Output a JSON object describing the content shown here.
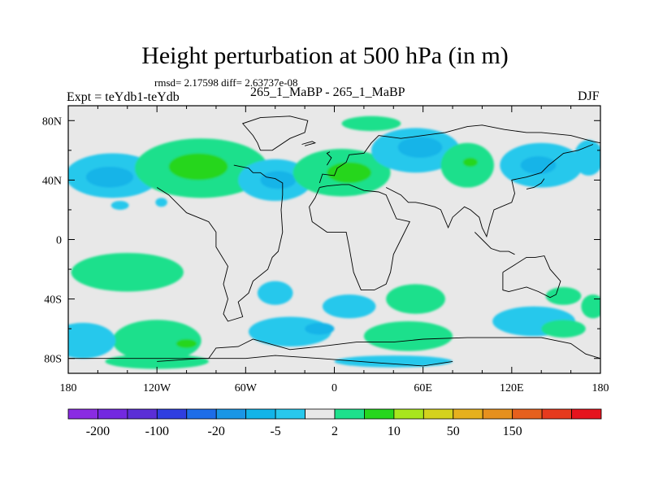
{
  "chart_data": {
    "type": "heatmap",
    "subtype": "filled-contour map",
    "title": "Height perturbation at 500 hPa (in m)",
    "stats_line": "rmsd= 2.17598 diff= 2.63737e-08",
    "left_label": "Expt = teYdb1-teYdb",
    "center_label": "265_1_MaBP - 265_1_MaBP",
    "right_label": "DJF",
    "xlim": [
      -180,
      180
    ],
    "ylim": [
      -90,
      90
    ],
    "x_ticks": [
      {
        "value": -180,
        "label": "180"
      },
      {
        "value": -120,
        "label": "120W"
      },
      {
        "value": -60,
        "label": "60W"
      },
      {
        "value": 0,
        "label": "0"
      },
      {
        "value": 60,
        "label": "60E"
      },
      {
        "value": 120,
        "label": "120E"
      },
      {
        "value": 180,
        "label": "180"
      }
    ],
    "y_ticks": [
      {
        "value": 80,
        "label": "80N"
      },
      {
        "value": 40,
        "label": "40N"
      },
      {
        "value": 0,
        "label": "0"
      },
      {
        "value": -40,
        "label": "40S"
      },
      {
        "value": -80,
        "label": "80S"
      }
    ],
    "colorbar": {
      "colors": [
        "#8a2be2",
        "#7328e0",
        "#5b2ed6",
        "#2f3ee0",
        "#1e6de8",
        "#1a96e6",
        "#12b4e8",
        "#28c8ec",
        "#e8e8e8",
        "#1ee08c",
        "#26d61e",
        "#a8e61e",
        "#d4d21e",
        "#e6b01e",
        "#e6901e",
        "#e6601e",
        "#e63a1e",
        "#e6141e"
      ],
      "labels": [
        {
          "after_box": 1,
          "label": "-200"
        },
        {
          "after_box": 3,
          "label": "-100"
        },
        {
          "after_box": 5,
          "label": "-20"
        },
        {
          "after_box": 7,
          "label": "-5"
        },
        {
          "after_box": 9,
          "label": "2"
        },
        {
          "after_box": 11,
          "label": "10"
        },
        {
          "after_box": 13,
          "label": "50"
        },
        {
          "after_box": 15,
          "label": "150"
        }
      ]
    },
    "background_color": "#e8e8e8",
    "blobs": [
      {
        "name": "n-pacific-blue",
        "color": "#28c8ec",
        "lon": -150,
        "lat": 43,
        "rx": 32,
        "ry": 15
      },
      {
        "name": "n-pacific-core",
        "color": "#12b4e8",
        "lon": -152,
        "lat": 42,
        "rx": 16,
        "ry": 7
      },
      {
        "name": "n-america-green",
        "color": "#1ee08c",
        "lon": -90,
        "lat": 48,
        "rx": 45,
        "ry": 20
      },
      {
        "name": "n-america-core",
        "color": "#26d61e",
        "lon": -92,
        "lat": 49,
        "rx": 20,
        "ry": 9
      },
      {
        "name": "atlantic-blue",
        "color": "#28c8ec",
        "lon": -40,
        "lat": 40,
        "rx": 25,
        "ry": 14
      },
      {
        "name": "atlantic-core",
        "color": "#12b4e8",
        "lon": -38,
        "lat": 40,
        "rx": 12,
        "ry": 6
      },
      {
        "name": "europe-green",
        "color": "#1ee08c",
        "lon": 5,
        "lat": 45,
        "rx": 33,
        "ry": 16
      },
      {
        "name": "europe-core",
        "color": "#26d61e",
        "lon": 10,
        "lat": 45,
        "rx": 15,
        "ry": 7
      },
      {
        "name": "arctic-green",
        "color": "#1ee08c",
        "lon": 25,
        "lat": 78,
        "rx": 20,
        "ry": 5
      },
      {
        "name": "siberia-blue",
        "color": "#28c8ec",
        "lon": 55,
        "lat": 60,
        "rx": 30,
        "ry": 15
      },
      {
        "name": "siberia-core",
        "color": "#12b4e8",
        "lon": 58,
        "lat": 62,
        "rx": 15,
        "ry": 7
      },
      {
        "name": "asia-green",
        "color": "#1ee08c",
        "lon": 90,
        "lat": 50,
        "rx": 18,
        "ry": 15
      },
      {
        "name": "asia-core",
        "color": "#26d61e",
        "lon": 92,
        "lat": 52,
        "rx": 5,
        "ry": 3
      },
      {
        "name": "n-pacific-e-blue",
        "color": "#28c8ec",
        "lon": 140,
        "lat": 50,
        "rx": 28,
        "ry": 15
      },
      {
        "name": "n-pacific-e-core",
        "color": "#12b4e8",
        "lon": 138,
        "lat": 50,
        "rx": 12,
        "ry": 6
      },
      {
        "name": "dateline-blue",
        "color": "#28c8ec",
        "lon": 172,
        "lat": 55,
        "rx": 10,
        "ry": 12
      },
      {
        "name": "small-blue-w",
        "color": "#28c8ec",
        "lon": -145,
        "lat": 23,
        "rx": 6,
        "ry": 3
      },
      {
        "name": "small-blue-c",
        "color": "#28c8ec",
        "lon": -117,
        "lat": 25,
        "rx": 4,
        "ry": 3
      },
      {
        "name": "s-pacific-green",
        "color": "#1ee08c",
        "lon": -140,
        "lat": -22,
        "rx": 38,
        "ry": 13
      },
      {
        "name": "s-atlantic-blue",
        "color": "#28c8ec",
        "lon": -40,
        "lat": -36,
        "rx": 12,
        "ry": 8
      },
      {
        "name": "s-africa-blue",
        "color": "#28c8ec",
        "lon": 10,
        "lat": -45,
        "rx": 18,
        "ry": 8
      },
      {
        "name": "indian-green",
        "color": "#1ee08c",
        "lon": 55,
        "lat": -40,
        "rx": 20,
        "ry": 10
      },
      {
        "name": "se-indian-green",
        "color": "#1ee08c",
        "lon": 155,
        "lat": -38,
        "rx": 12,
        "ry": 6
      },
      {
        "name": "far-e-green",
        "color": "#1ee08c",
        "lon": 175,
        "lat": -45,
        "rx": 8,
        "ry": 8
      },
      {
        "name": "southern-green-w",
        "color": "#1ee08c",
        "lon": -120,
        "lat": -68,
        "rx": 30,
        "ry": 14
      },
      {
        "name": "southern-green-wcore",
        "color": "#26d61e",
        "lon": -100,
        "lat": -70,
        "rx": 7,
        "ry": 3
      },
      {
        "name": "southern-blue-w",
        "color": "#28c8ec",
        "lon": -170,
        "lat": -68,
        "rx": 22,
        "ry": 12
      },
      {
        "name": "southern-blue-c",
        "color": "#28c8ec",
        "lon": -30,
        "lat": -62,
        "rx": 28,
        "ry": 10
      },
      {
        "name": "southern-blue-ccore",
        "color": "#12b4e8",
        "lon": -10,
        "lat": -60,
        "rx": 10,
        "ry": 4
      },
      {
        "name": "southern-green-e",
        "color": "#1ee08c",
        "lon": 50,
        "lat": -65,
        "rx": 30,
        "ry": 10
      },
      {
        "name": "southern-blue-e",
        "color": "#28c8ec",
        "lon": 135,
        "lat": -55,
        "rx": 28,
        "ry": 10
      },
      {
        "name": "southern-green-ee",
        "color": "#1ee08c",
        "lon": 155,
        "lat": -60,
        "rx": 15,
        "ry": 6
      },
      {
        "name": "south-pole-green",
        "color": "#1ee08c",
        "lon": -120,
        "lat": -82,
        "rx": 35,
        "ry": 5
      },
      {
        "name": "south-pole-blue",
        "color": "#28c8ec",
        "lon": 40,
        "lat": -82,
        "rx": 40,
        "ry": 4
      }
    ],
    "coastlines": [
      [
        [
          -180,
          -80
        ],
        [
          -85,
          -80
        ],
        [
          -80,
          -73
        ],
        [
          -65,
          -72
        ],
        [
          -55,
          -67
        ],
        [
          -30,
          -74
        ],
        [
          -10,
          -72
        ],
        [
          15,
          -69
        ],
        [
          40,
          -69
        ],
        [
          60,
          -67
        ],
        [
          90,
          -66
        ],
        [
          110,
          -66
        ],
        [
          140,
          -66
        ],
        [
          160,
          -70
        ],
        [
          170,
          -77
        ],
        [
          180,
          -80
        ]
      ],
      [
        [
          -120,
          -82
        ],
        [
          -90,
          -80
        ],
        [
          -60,
          -80
        ],
        [
          -40,
          -78
        ],
        [
          -10,
          -80
        ],
        [
          30,
          -83
        ],
        [
          60,
          -85
        ],
        [
          80,
          -82
        ]
      ],
      [
        [
          -68,
          50
        ],
        [
          -58,
          48
        ],
        [
          -55,
          45
        ],
        [
          -50,
          45
        ],
        [
          -46,
          42
        ],
        [
          -40,
          41
        ],
        [
          -35,
          38
        ],
        [
          -35,
          30
        ],
        [
          -36,
          20
        ],
        [
          -35,
          5
        ],
        [
          -38,
          -8
        ],
        [
          -42,
          -12
        ],
        [
          -45,
          -20
        ],
        [
          -55,
          -28
        ],
        [
          -58,
          -36
        ],
        [
          -65,
          -42
        ],
        [
          -62,
          -52
        ],
        [
          -72,
          -55
        ],
        [
          -75,
          -50
        ],
        [
          -72,
          -40
        ],
        [
          -75,
          -30
        ],
        [
          -72,
          -18
        ],
        [
          -80,
          -5
        ],
        [
          -80,
          5
        ],
        [
          -85,
          12
        ],
        [
          -100,
          18
        ],
        [
          -112,
          30
        ],
        [
          -120,
          35
        ]
      ],
      [
        [
          -10,
          35
        ],
        [
          -5,
          36
        ],
        [
          5,
          37
        ],
        [
          10,
          37
        ],
        [
          20,
          33
        ],
        [
          30,
          32
        ],
        [
          35,
          30
        ],
        [
          42,
          14
        ],
        [
          51,
          12
        ],
        [
          45,
          0
        ],
        [
          40,
          -10
        ],
        [
          38,
          -22
        ],
        [
          35,
          -30
        ],
        [
          27,
          -34
        ],
        [
          18,
          -34
        ],
        [
          13,
          -22
        ],
        [
          10,
          -5
        ],
        [
          8,
          5
        ],
        [
          -5,
          5
        ],
        [
          -15,
          12
        ],
        [
          -17,
          22
        ],
        [
          -13,
          28
        ],
        [
          -10,
          35
        ]
      ],
      [
        [
          -10,
          38
        ],
        [
          -8,
          44
        ],
        [
          0,
          43
        ],
        [
          2,
          48
        ],
        [
          8,
          52
        ],
        [
          10,
          57
        ],
        [
          20,
          58
        ],
        [
          25,
          65
        ],
        [
          30,
          70
        ],
        [
          45,
          68
        ],
        [
          60,
          70
        ],
        [
          75,
          72
        ],
        [
          90,
          76
        ],
        [
          100,
          77
        ],
        [
          115,
          74
        ],
        [
          130,
          72
        ],
        [
          140,
          72
        ],
        [
          160,
          70
        ],
        [
          175,
          66
        ],
        [
          180,
          65
        ]
      ],
      [
        [
          35,
          35
        ],
        [
          45,
          30
        ],
        [
          50,
          25
        ],
        [
          55,
          25
        ],
        [
          60,
          24
        ],
        [
          68,
          22
        ],
        [
          72,
          20
        ],
        [
          77,
          8
        ],
        [
          80,
          15
        ],
        [
          88,
          22
        ],
        [
          92,
          20
        ],
        [
          98,
          15
        ],
        [
          100,
          8
        ],
        [
          103,
          2
        ],
        [
          105,
          10
        ],
        [
          108,
          20
        ],
        [
          120,
          25
        ],
        [
          122,
          31
        ],
        [
          120,
          40
        ],
        [
          130,
          42
        ],
        [
          140,
          45
        ],
        [
          145,
          50
        ],
        [
          155,
          58
        ],
        [
          165,
          60
        ],
        [
          175,
          64
        ]
      ],
      [
        [
          114,
          -22
        ],
        [
          114,
          -34
        ],
        [
          118,
          -35
        ],
        [
          130,
          -32
        ],
        [
          138,
          -35
        ],
        [
          146,
          -39
        ],
        [
          150,
          -37
        ],
        [
          153,
          -28
        ],
        [
          146,
          -20
        ],
        [
          142,
          -11
        ],
        [
          136,
          -12
        ],
        [
          130,
          -12
        ],
        [
          122,
          -17
        ],
        [
          114,
          -22
        ]
      ],
      [
        [
          95,
          5
        ],
        [
          100,
          0
        ],
        [
          106,
          -6
        ],
        [
          112,
          -8
        ],
        [
          118,
          -8
        ],
        [
          122,
          -10
        ]
      ],
      [
        [
          130,
          34
        ],
        [
          135,
          35
        ],
        [
          140,
          38
        ],
        [
          142,
          41
        ]
      ],
      [
        [
          -5,
          50
        ],
        [
          -2,
          55
        ],
        [
          -5,
          58
        ],
        [
          -3,
          59
        ]
      ],
      [
        [
          -22,
          64
        ],
        [
          -15,
          66
        ],
        [
          -13,
          65
        ],
        [
          -20,
          63
        ]
      ],
      [
        [
          -50,
          60
        ],
        [
          -42,
          60
        ],
        [
          -30,
          68
        ],
        [
          -20,
          72
        ],
        [
          -18,
          80
        ],
        [
          -30,
          83
        ],
        [
          -50,
          82
        ],
        [
          -62,
          78
        ],
        [
          -55,
          70
        ],
        [
          -52,
          65
        ],
        [
          -50,
          60
        ]
      ]
    ]
  }
}
